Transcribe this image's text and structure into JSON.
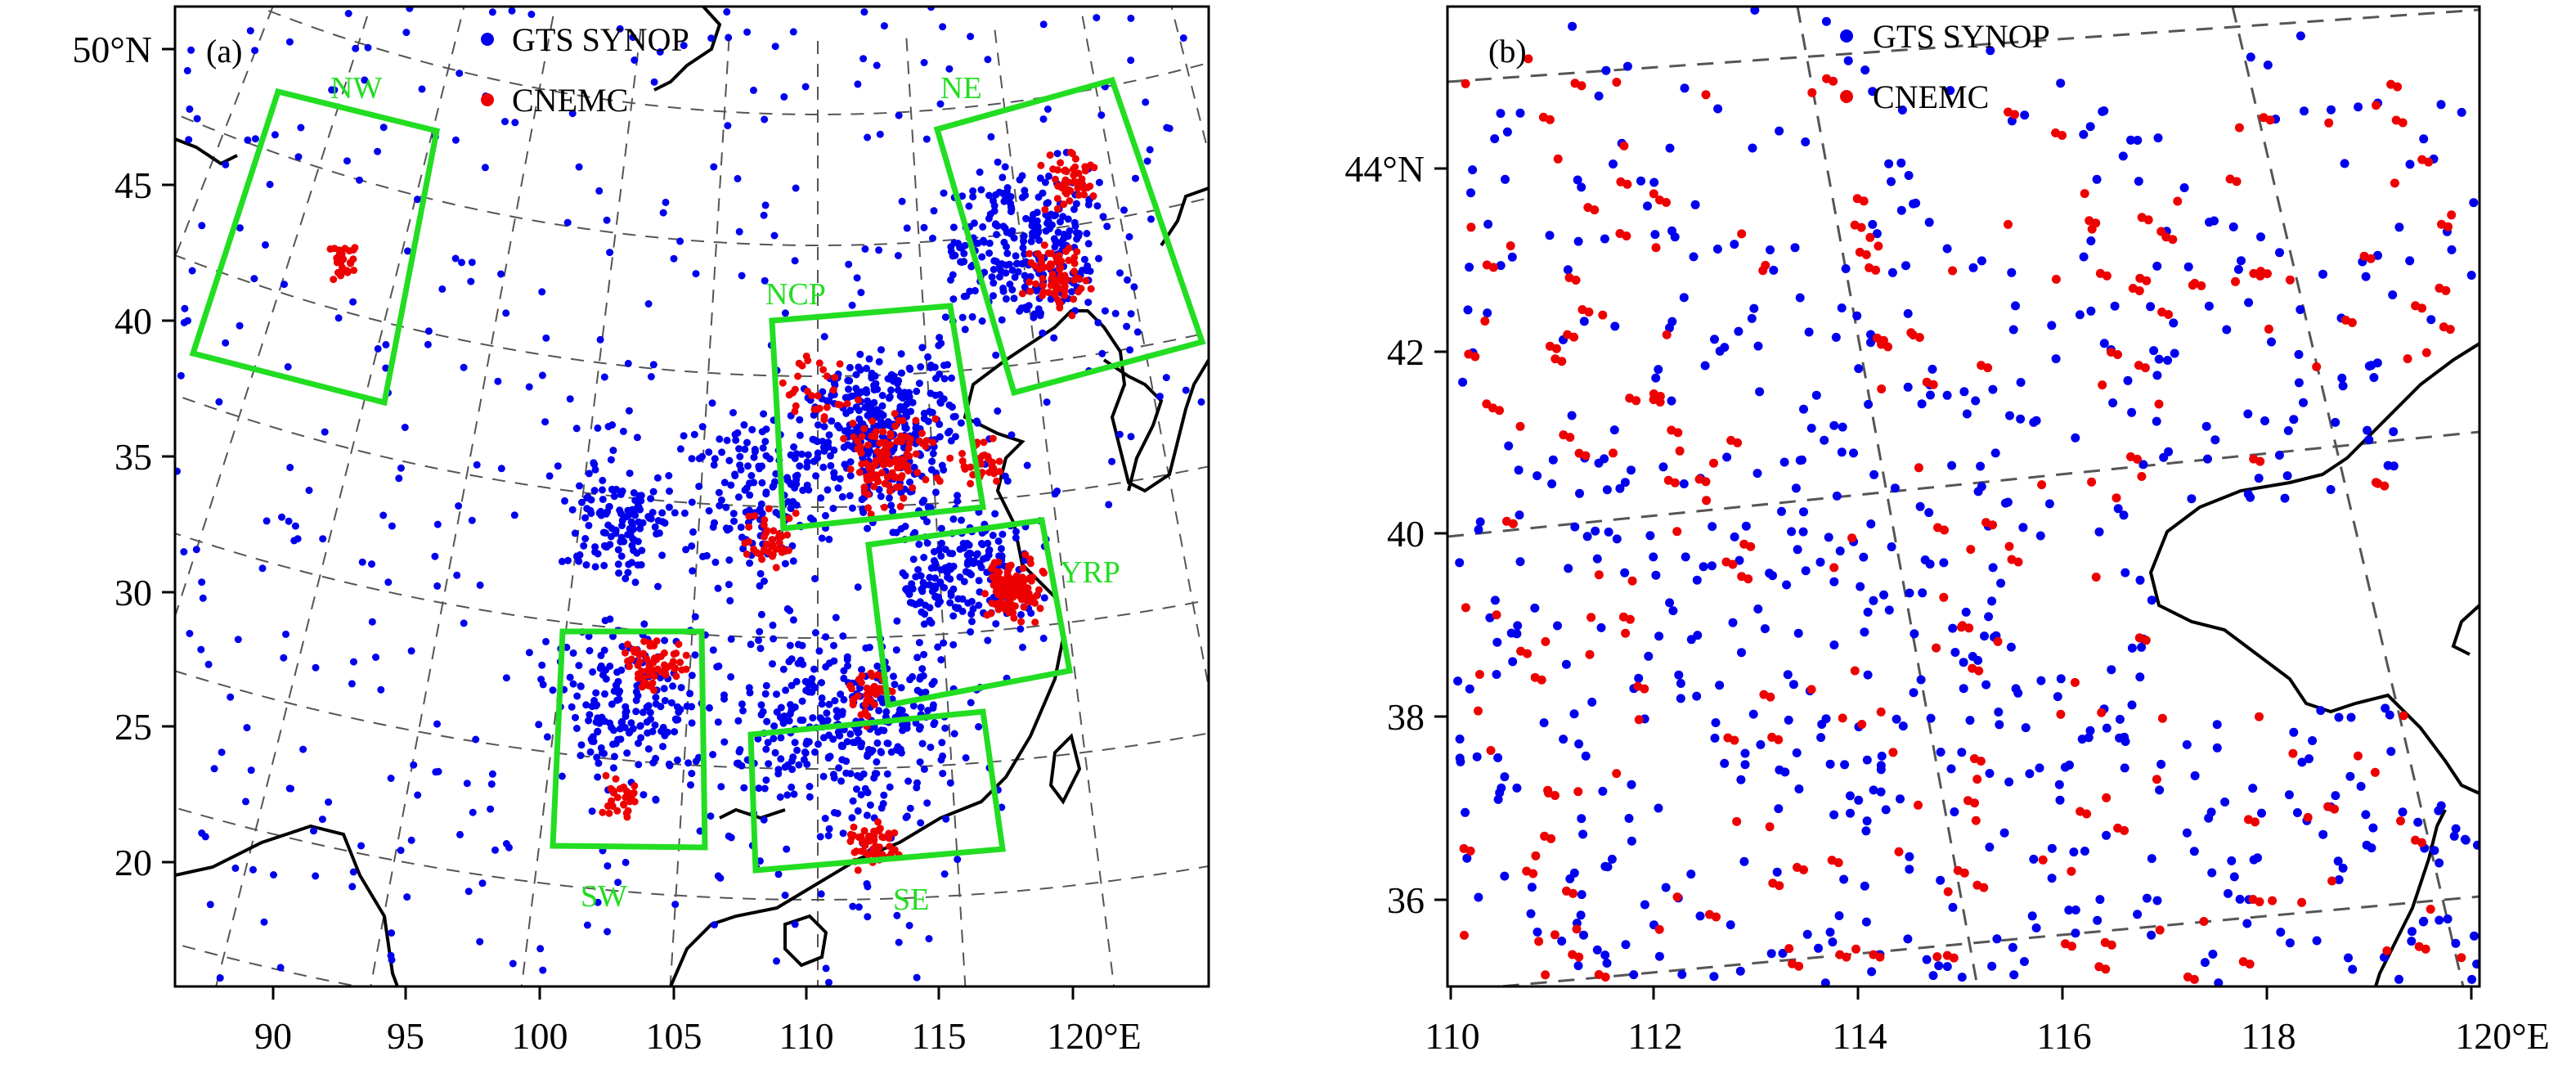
{
  "legend": {
    "synop_label": "GTS SYNOP",
    "cnemc_label": "CNEMC",
    "synop_color": "#0000ee",
    "cnemc_color": "#ee0000"
  },
  "colors": {
    "region_box": "#22dd22",
    "coast": "#000000",
    "grid": "#555555"
  },
  "panel_a": {
    "label": "(a)",
    "y_ticks": [
      "50°N",
      "45",
      "40",
      "35",
      "30",
      "25",
      "20"
    ],
    "x_ticks": [
      "90",
      "95",
      "100",
      "105",
      "110",
      "115",
      "120°E"
    ],
    "regions": [
      {
        "name": "NW"
      },
      {
        "name": "NE"
      },
      {
        "name": "NCP"
      },
      {
        "name": "YRP"
      },
      {
        "name": "SW"
      },
      {
        "name": "SE"
      }
    ]
  },
  "panel_b": {
    "label": "(b)",
    "y_ticks": [
      "44°N",
      "42",
      "40",
      "38",
      "36"
    ],
    "x_ticks": [
      "110",
      "112",
      "114",
      "116",
      "118",
      "120°E"
    ]
  }
}
